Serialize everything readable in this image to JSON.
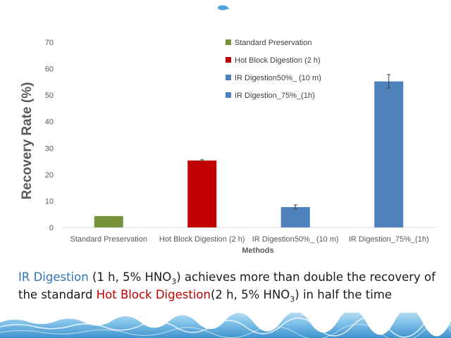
{
  "chart_data": {
    "type": "bar",
    "categories": [
      "Standard Preservation",
      "Hot Block Digestion (2 h)",
      "IR Digestion50%_ (10 m)",
      "IR Digestion_75%_(1h)"
    ],
    "values": [
      4.3,
      25.3,
      7.7,
      55.2
    ],
    "errors": [
      0,
      0.3,
      0.8,
      2.6
    ],
    "colors": [
      "#77933c",
      "#c00000",
      "#4f81bd",
      "#4f81bd"
    ],
    "legend": [
      "Standard Preservation",
      "Hot Block Digestion (2 h)",
      "IR Digestion50%_ (10 m)",
      "IR Digestion_75%_(1h)"
    ],
    "legend_placement": "top-center",
    "xlabel": "Methods",
    "ylabel": "Recovery Rate (%)",
    "ylim": [
      0,
      70
    ],
    "yticks": [
      0,
      10,
      20,
      30,
      40,
      50,
      60,
      70
    ],
    "grid": false
  },
  "caption": {
    "part1": "IR Digestion",
    "part2": " (1 h, 5% HNO",
    "sub1": "3",
    "part3": ") achieves more than double the recovery of the standard ",
    "part4": "Hot Block Digestion",
    "part5": "(2 h, 5% HNO",
    "sub2": "3",
    "part6": ") in half the time",
    "color_ir": "#2e75b6",
    "color_hot": "#c00000"
  }
}
